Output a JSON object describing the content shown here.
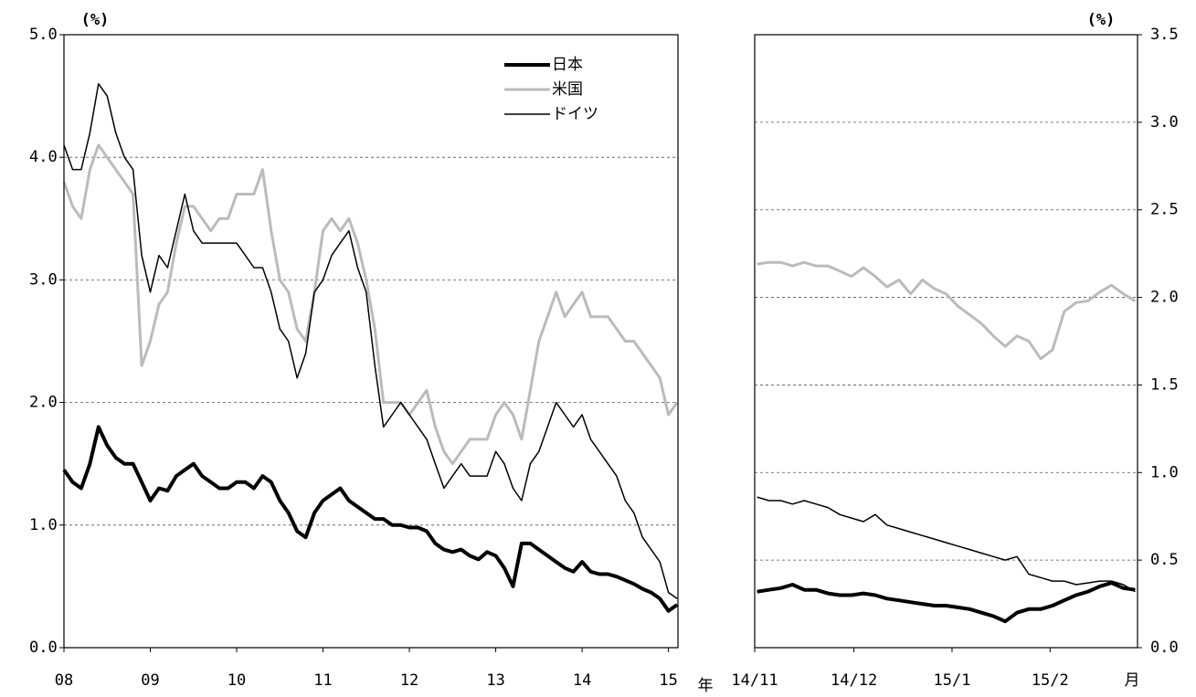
{
  "chart_data": [
    {
      "type": "line",
      "y_label": "(%)",
      "x_unit": "年",
      "legend": "upper right",
      "grid": true,
      "y_axis_side": "left",
      "xlim": [
        2008,
        2015.11
      ],
      "ylim": [
        0,
        5
      ],
      "xticks": [
        {
          "value": 2008,
          "label": "08"
        },
        {
          "value": 2009,
          "label": "09"
        },
        {
          "value": 2010,
          "label": "10"
        },
        {
          "value": 2011,
          "label": "11"
        },
        {
          "value": 2012,
          "label": "12"
        },
        {
          "value": 2013,
          "label": "13"
        },
        {
          "value": 2014,
          "label": "14"
        },
        {
          "value": 2015,
          "label": "15"
        }
      ],
      "yticks": [
        {
          "value": 0,
          "label": "0.0"
        },
        {
          "value": 1,
          "label": "1.0"
        },
        {
          "value": 2,
          "label": "2.0"
        },
        {
          "value": 3,
          "label": "3.0"
        },
        {
          "value": 4,
          "label": "4.0"
        },
        {
          "value": 5,
          "label": "5.0"
        }
      ],
      "x": [
        2008.0,
        2008.1,
        2008.2,
        2008.3,
        2008.4,
        2008.5,
        2008.6,
        2008.7,
        2008.8,
        2008.9,
        2009.0,
        2009.1,
        2009.2,
        2009.3,
        2009.4,
        2009.5,
        2009.6,
        2009.7,
        2009.8,
        2009.9,
        2010.0,
        2010.1,
        2010.2,
        2010.3,
        2010.4,
        2010.5,
        2010.6,
        2010.7,
        2010.8,
        2010.9,
        2011.0,
        2011.1,
        2011.2,
        2011.3,
        2011.4,
        2011.5,
        2011.6,
        2011.7,
        2011.8,
        2011.9,
        2012.0,
        2012.1,
        2012.2,
        2012.3,
        2012.4,
        2012.5,
        2012.6,
        2012.7,
        2012.8,
        2012.9,
        2013.0,
        2013.1,
        2013.2,
        2013.3,
        2013.4,
        2013.5,
        2013.6,
        2013.7,
        2013.8,
        2013.9,
        2014.0,
        2014.1,
        2014.2,
        2014.3,
        2014.4,
        2014.5,
        2014.6,
        2014.7,
        2014.8,
        2014.9,
        2015.0,
        2015.1
      ],
      "series": [
        {
          "name": "日本",
          "color": "#000000",
          "width": 4,
          "values": [
            1.45,
            1.35,
            1.3,
            1.5,
            1.8,
            1.65,
            1.55,
            1.5,
            1.5,
            1.35,
            1.2,
            1.3,
            1.28,
            1.4,
            1.45,
            1.5,
            1.4,
            1.35,
            1.3,
            1.3,
            1.35,
            1.35,
            1.3,
            1.4,
            1.35,
            1.2,
            1.1,
            0.95,
            0.9,
            1.1,
            1.2,
            1.25,
            1.3,
            1.2,
            1.15,
            1.1,
            1.05,
            1.05,
            1.0,
            1.0,
            0.98,
            0.98,
            0.95,
            0.85,
            0.8,
            0.78,
            0.8,
            0.75,
            0.72,
            0.78,
            0.75,
            0.65,
            0.5,
            0.85,
            0.85,
            0.8,
            0.75,
            0.7,
            0.65,
            0.62,
            0.7,
            0.62,
            0.6,
            0.6,
            0.58,
            0.55,
            0.52,
            0.48,
            0.45,
            0.4,
            0.3,
            0.35
          ]
        },
        {
          "name": "米国",
          "color": "#bbbbbb",
          "width": 3,
          "values": [
            3.8,
            3.6,
            3.5,
            3.9,
            4.1,
            4.0,
            3.9,
            3.8,
            3.7,
            2.3,
            2.5,
            2.8,
            2.9,
            3.3,
            3.6,
            3.6,
            3.5,
            3.4,
            3.5,
            3.5,
            3.7,
            3.7,
            3.7,
            3.9,
            3.4,
            3.0,
            2.9,
            2.6,
            2.5,
            2.9,
            3.4,
            3.5,
            3.4,
            3.5,
            3.3,
            3.0,
            2.6,
            2.0,
            2.0,
            2.0,
            1.9,
            2.0,
            2.1,
            1.8,
            1.6,
            1.5,
            1.6,
            1.7,
            1.7,
            1.7,
            1.9,
            2.0,
            1.9,
            1.7,
            2.1,
            2.5,
            2.7,
            2.9,
            2.7,
            2.8,
            2.9,
            2.7,
            2.7,
            2.7,
            2.6,
            2.5,
            2.5,
            2.4,
            2.3,
            2.2,
            1.9,
            2.0
          ]
        },
        {
          "name": "ドイツ",
          "color": "#000000",
          "width": 1.5,
          "values": [
            4.1,
            3.9,
            3.9,
            4.2,
            4.6,
            4.5,
            4.2,
            4.0,
            3.9,
            3.2,
            2.9,
            3.2,
            3.1,
            3.4,
            3.7,
            3.4,
            3.3,
            3.3,
            3.3,
            3.3,
            3.3,
            3.2,
            3.1,
            3.1,
            2.9,
            2.6,
            2.5,
            2.2,
            2.4,
            2.9,
            3.0,
            3.2,
            3.3,
            3.4,
            3.1,
            2.9,
            2.3,
            1.8,
            1.9,
            2.0,
            1.9,
            1.8,
            1.7,
            1.5,
            1.3,
            1.4,
            1.5,
            1.4,
            1.4,
            1.4,
            1.6,
            1.5,
            1.3,
            1.2,
            1.5,
            1.6,
            1.8,
            2.0,
            1.9,
            1.8,
            1.9,
            1.7,
            1.6,
            1.5,
            1.4,
            1.2,
            1.1,
            0.9,
            0.8,
            0.7,
            0.45,
            0.4
          ]
        }
      ]
    },
    {
      "type": "line",
      "y_label": "(%)",
      "x_unit": "月",
      "grid": true,
      "y_axis_side": "right",
      "xlim": [
        2014.833,
        2015.157
      ],
      "ylim": [
        0,
        3.5
      ],
      "xticks": [
        {
          "value": 2014.833,
          "label": "14/11"
        },
        {
          "value": 2014.917,
          "label": "14/12"
        },
        {
          "value": 2015.0,
          "label": "15/1"
        },
        {
          "value": 2015.083,
          "label": "15/2"
        }
      ],
      "yticks": [
        {
          "value": 0,
          "label": "0.0"
        },
        {
          "value": 0.5,
          "label": "0.5"
        },
        {
          "value": 1,
          "label": "1.0"
        },
        {
          "value": 1.5,
          "label": "1.5"
        },
        {
          "value": 2,
          "label": "2.0"
        },
        {
          "value": 2.5,
          "label": "2.5"
        },
        {
          "value": 3,
          "label": "3.0"
        },
        {
          "value": 3.5,
          "label": "3.5"
        }
      ],
      "x": [
        2014.835,
        2014.845,
        2014.855,
        2014.865,
        2014.875,
        2014.885,
        2014.895,
        2014.905,
        2014.915,
        2014.925,
        2014.935,
        2014.945,
        2014.955,
        2014.965,
        2014.975,
        2014.985,
        2014.995,
        2015.005,
        2015.015,
        2015.025,
        2015.035,
        2015.045,
        2015.055,
        2015.065,
        2015.075,
        2015.085,
        2015.095,
        2015.105,
        2015.115,
        2015.125,
        2015.135,
        2015.145,
        2015.155
      ],
      "series": [
        {
          "name": "日本",
          "color": "#000000",
          "width": 4,
          "values": [
            0.32,
            0.33,
            0.34,
            0.36,
            0.33,
            0.33,
            0.31,
            0.3,
            0.3,
            0.31,
            0.3,
            0.28,
            0.27,
            0.26,
            0.25,
            0.24,
            0.24,
            0.23,
            0.22,
            0.2,
            0.18,
            0.15,
            0.2,
            0.22,
            0.22,
            0.24,
            0.27,
            0.3,
            0.32,
            0.35,
            0.37,
            0.34,
            0.33
          ]
        },
        {
          "name": "米国",
          "color": "#bbbbbb",
          "width": 3,
          "values": [
            2.19,
            2.2,
            2.2,
            2.18,
            2.2,
            2.18,
            2.18,
            2.15,
            2.12,
            2.17,
            2.12,
            2.06,
            2.1,
            2.02,
            2.1,
            2.05,
            2.02,
            1.95,
            1.9,
            1.85,
            1.78,
            1.72,
            1.78,
            1.75,
            1.65,
            1.7,
            1.92,
            1.97,
            1.98,
            2.03,
            2.07,
            2.02,
            1.98
          ]
        },
        {
          "name": "ドイツ",
          "color": "#000000",
          "width": 1.5,
          "values": [
            0.86,
            0.84,
            0.84,
            0.82,
            0.84,
            0.82,
            0.8,
            0.76,
            0.74,
            0.72,
            0.76,
            0.7,
            0.68,
            0.66,
            0.64,
            0.62,
            0.6,
            0.58,
            0.56,
            0.54,
            0.52,
            0.5,
            0.52,
            0.42,
            0.4,
            0.38,
            0.38,
            0.36,
            0.37,
            0.38,
            0.38,
            0.36,
            0.32
          ]
        }
      ]
    }
  ]
}
